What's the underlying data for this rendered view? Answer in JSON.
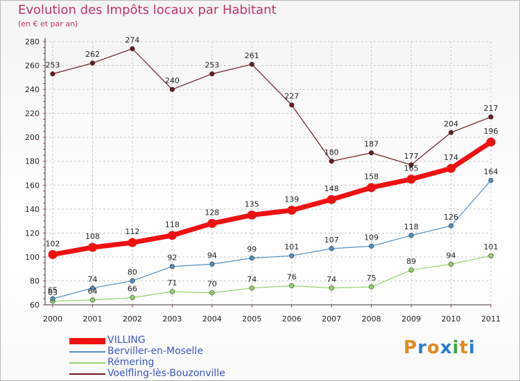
{
  "title": "Evolution des Impôts locaux par Habitant",
  "subtitle": "(en € et par an)",
  "logo": [
    "P",
    "r",
    "o",
    "x",
    "i",
    "t",
    "i"
  ],
  "logo_colors": [
    "#e08a1e",
    "#2a7fd0",
    "#e08a1e",
    "#2a7fd0",
    "#39a845",
    "#e08a1e",
    "#2a7fd0"
  ],
  "chart_data": {
    "type": "line",
    "x": [
      "2000",
      "2001",
      "2002",
      "2003",
      "2004",
      "2005",
      "2006",
      "2007",
      "2008",
      "2009",
      "2010",
      "2011"
    ],
    "ylim": [
      60,
      280
    ],
    "yticks": [
      60,
      80,
      100,
      120,
      140,
      160,
      180,
      200,
      220,
      240,
      260,
      280
    ],
    "grid": true,
    "legend_position": "bottom-left",
    "series": [
      {
        "name": "Voelfling-lès-Bouzonville",
        "color": "#6e1a20",
        "values": [
          253,
          262,
          274,
          240,
          253,
          261,
          227,
          180,
          187,
          177,
          204,
          217
        ]
      },
      {
        "name": "Rémering",
        "color": "#90d568",
        "values": [
          63,
          64,
          66,
          71,
          70,
          74,
          76,
          74,
          75,
          89,
          94,
          101
        ]
      },
      {
        "name": "Berviller-en-Moselle",
        "color": "#4e8fc5",
        "values": [
          65,
          74,
          80,
          92,
          94,
          99,
          101,
          107,
          109,
          118,
          126,
          164
        ]
      },
      {
        "name": "VILLING",
        "color": "#ee1111",
        "values": [
          102,
          108,
          112,
          118,
          128,
          135,
          139,
          148,
          158,
          165,
          174,
          196
        ]
      }
    ],
    "legend_order": [
      "VILLING",
      "Berviller-en-Moselle",
      "Rémering",
      "Voelfling-lès-Bouzonville"
    ]
  }
}
